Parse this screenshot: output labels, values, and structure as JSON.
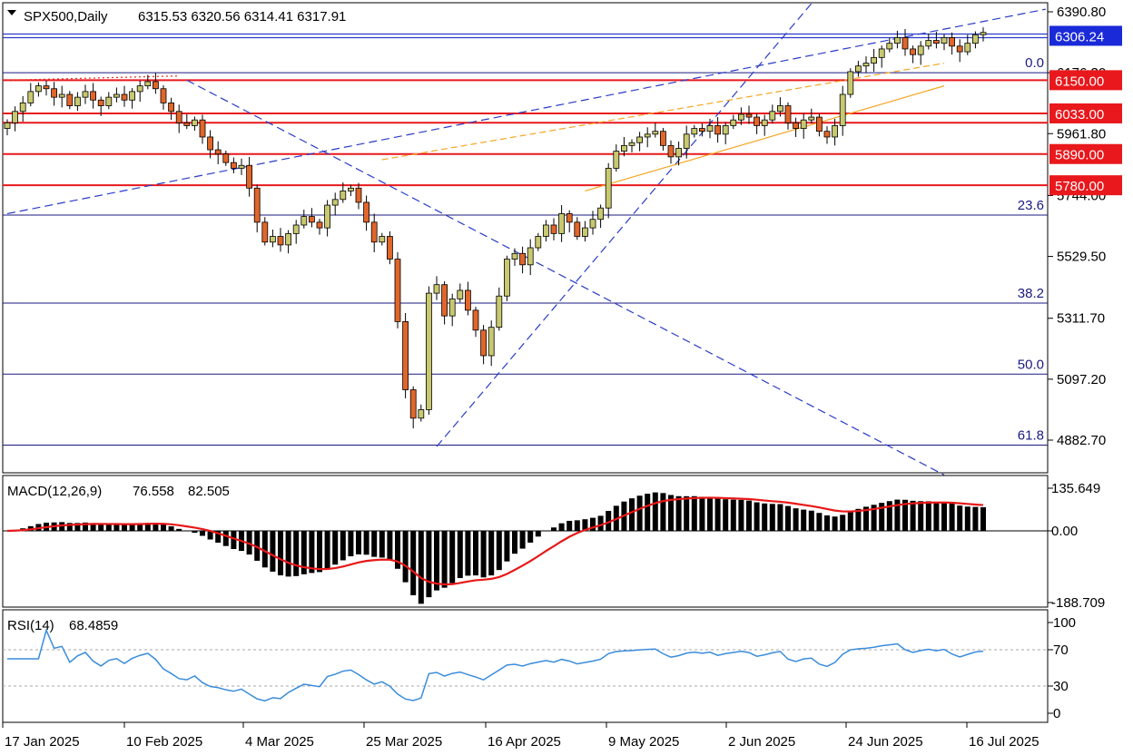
{
  "header": {
    "symbol": "SPX500,Daily",
    "ohlc": "6315.53 6320.56 6314.41 6317.91"
  },
  "colors": {
    "bull": "#c8c870",
    "bear": "#e0662a",
    "hline": "#e8181c",
    "fib": "#1a1a80",
    "trend": "#2a3cc8",
    "channel": "#f5a623",
    "signal": "#e81818",
    "rsi": "#3a8cdc"
  },
  "chart_data": [
    {
      "type": "candlestick",
      "title": "SPX500,Daily",
      "ohlc_last": {
        "open": 6315.53,
        "high": 6320.56,
        "low": 6314.41,
        "close": 6317.91
      },
      "yticks": [
        6390.8,
        6176.3,
        5961.8,
        5744.0,
        5529.5,
        5311.7,
        5097.2,
        4882.7
      ],
      "xticks": [
        "17 Jan 2025",
        "10 Feb 2025",
        "4 Mar 2025",
        "25 Mar 2025",
        "16 Apr 2025",
        "9 May 2025",
        "2 Jun 2025",
        "24 Jun 2025",
        "16 Jul 2025"
      ],
      "price_badges": [
        {
          "label": "6306.24",
          "value": 6306.24,
          "color": "#1a2ad8"
        },
        {
          "label": "6150.00",
          "value": 6150.0,
          "color": "#e8181c"
        },
        {
          "label": "6033.00",
          "value": 6033.0,
          "color": "#e8181c"
        },
        {
          "label": "5890.00",
          "value": 5890.0,
          "color": "#e8181c"
        },
        {
          "label": "5780.00",
          "value": 5780.0,
          "color": "#e8181c"
        }
      ],
      "horizontal_levels": [
        6150.0,
        6033.0,
        6000.0,
        5890.0,
        5780.0
      ],
      "fibonacci": [
        {
          "label": "0.0",
          "value": 6176.3
        },
        {
          "label": "23.6",
          "value": 5675.0
        },
        {
          "label": "38.2",
          "value": 5365.0
        },
        {
          "label": "50.0",
          "value": 5115.0
        },
        {
          "label": "61.8",
          "value": 4865.0
        }
      ],
      "closes": [
        6000,
        6040,
        6070,
        6110,
        6130,
        6120,
        6090,
        6100,
        6060,
        6090,
        6110,
        6080,
        6060,
        6090,
        6100,
        6080,
        6110,
        6130,
        6145,
        6120,
        6070,
        6040,
        6000,
        5990,
        6010,
        5950,
        5905,
        5890,
        5860,
        5840,
        5850,
        5770,
        5650,
        5580,
        5600,
        5570,
        5610,
        5640,
        5670,
        5650,
        5630,
        5710,
        5730,
        5760,
        5770,
        5720,
        5650,
        5580,
        5600,
        5520,
        5300,
        5060,
        4960,
        4990,
        5400,
        5430,
        5320,
        5380,
        5410,
        5340,
        5270,
        5180,
        5280,
        5390,
        5520,
        5540,
        5500,
        5560,
        5600,
        5640,
        5610,
        5680,
        5650,
        5600,
        5630,
        5660,
        5700,
        5840,
        5900,
        5920,
        5930,
        5950,
        5960,
        5970,
        5920,
        5880,
        5910,
        5960,
        5980,
        5970,
        5990,
        5960,
        5990,
        6010,
        6030,
        6020,
        5990,
        6010,
        6040,
        6060,
        6000,
        5980,
        6010,
        6020,
        5970,
        5950,
        5990,
        6100,
        6180,
        6200,
        6210,
        6230,
        6260,
        6280,
        6300,
        6260,
        6240,
        6270,
        6290,
        6280,
        6300,
        6270,
        6250,
        6280,
        6310,
        6318
      ],
      "channel": {
        "upper": [
          [
            48,
            5870
          ],
          [
            120,
            6210
          ]
        ],
        "lower": [
          [
            74,
            5760
          ],
          [
            120,
            6130
          ]
        ]
      }
    },
    {
      "type": "histogram",
      "title": "MACD(12,26,9)",
      "macd_value": 76.558,
      "signal_value": 82.505,
      "yticks": [
        135.649,
        0.0,
        -188.709
      ],
      "ylim": [
        -188.709,
        135.649
      ]
    },
    {
      "type": "line",
      "title": "RSI(14)",
      "value": 68.4859,
      "yticks": [
        100,
        70,
        30,
        0
      ],
      "ylim": [
        0,
        100
      ],
      "levels": [
        70,
        30
      ]
    }
  ]
}
